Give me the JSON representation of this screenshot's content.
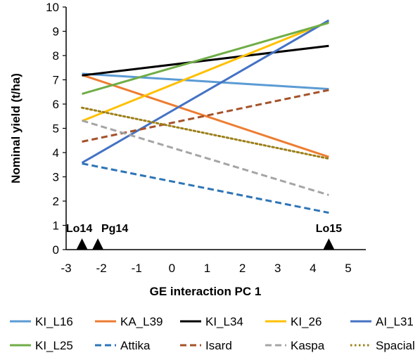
{
  "chart_data": {
    "type": "line",
    "title": "",
    "xlabel": "GE interaction PC 1",
    "ylabel": "Nominal yield (t/ha)",
    "xlim": [
      -3,
      5.5
    ],
    "ylim": [
      0,
      10
    ],
    "xticks": [
      -3,
      -2,
      -1,
      0,
      1,
      2,
      3,
      4,
      5
    ],
    "yticks": [
      0,
      1,
      2,
      3,
      4,
      5,
      6,
      7,
      8,
      9,
      10
    ],
    "x_tick_labels": [
      "-3",
      "-2",
      "-1",
      "0",
      "1",
      "2",
      "3",
      "4",
      "5"
    ],
    "y_tick_labels": [
      "0",
      "1",
      "2",
      "3",
      "4",
      "5",
      "6",
      "7",
      "8",
      "9",
      "10"
    ],
    "grid": false,
    "legend_position": "bottom",
    "environment_markers": [
      {
        "label": "Lo14",
        "x": -2.55
      },
      {
        "label": "Pg14",
        "x": -2.1
      },
      {
        "label": "Lo15",
        "x": 4.45
      }
    ],
    "x": [
      -2.55,
      4.45
    ],
    "series": [
      {
        "name": "KI_L16",
        "values": [
          7.25,
          6.62
        ],
        "color": "#5B9BD5",
        "style": "solid"
      },
      {
        "name": "KA_L39",
        "values": [
          7.2,
          3.82
        ],
        "color": "#ED7D31",
        "style": "solid"
      },
      {
        "name": "KI_L34",
        "values": [
          7.18,
          8.4
        ],
        "color": "#000000",
        "style": "solid"
      },
      {
        "name": "KI_26",
        "values": [
          5.3,
          9.4
        ],
        "color": "#FFC000",
        "style": "solid"
      },
      {
        "name": "AI_L31",
        "values": [
          3.58,
          9.45
        ],
        "color": "#4472C4",
        "style": "solid"
      },
      {
        "name": "KI_L25",
        "values": [
          6.42,
          9.35
        ],
        "color": "#70AD47",
        "style": "solid"
      },
      {
        "name": "Attika",
        "values": [
          3.55,
          1.52
        ],
        "color": "#2E75B6",
        "style": "dashed"
      },
      {
        "name": "Isard",
        "values": [
          4.45,
          6.58
        ],
        "color": "#A5522A",
        "style": "dashed"
      },
      {
        "name": "Kaspa",
        "values": [
          5.32,
          2.25
        ],
        "color": "#A5A5A5",
        "style": "dashed"
      },
      {
        "name": "Spacial",
        "values": [
          5.85,
          3.75
        ],
        "color": "#9C7F19",
        "style": "dotted"
      }
    ]
  }
}
